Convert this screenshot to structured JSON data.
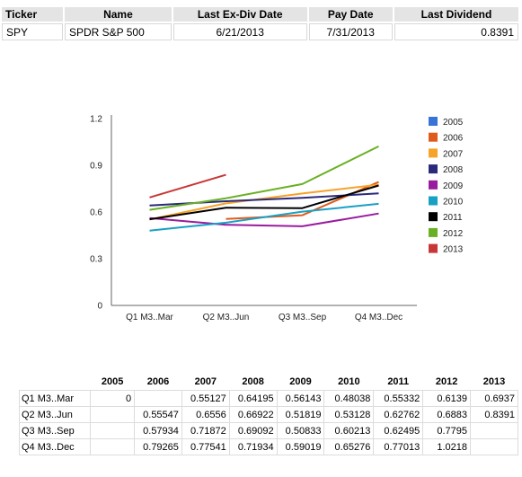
{
  "summary": {
    "headers": [
      "Ticker",
      "Name",
      "Last Ex-Div Date",
      "Pay Date",
      "Last Dividend"
    ],
    "row": {
      "ticker": "SPY",
      "name": "SPDR S&P 500",
      "ex_div_date": "6/21/2013",
      "pay_date": "7/31/2013",
      "last_dividend": "0.8391"
    }
  },
  "chart_data": {
    "type": "line",
    "categories": [
      "Q1 M3..Mar",
      "Q2 M3..Jun",
      "Q3 M3..Sep",
      "Q4 M3..Dec"
    ],
    "ylim": [
      0,
      1.2
    ],
    "yticks": [
      "0",
      "0.3",
      "0.6",
      "0.9",
      "1.2"
    ],
    "grid": false,
    "legend_position": "right",
    "series": [
      {
        "name": "2005",
        "color": "#3873d8",
        "values": [
          null,
          null,
          null,
          null
        ]
      },
      {
        "name": "2006",
        "color": "#e05a1c",
        "values": [
          null,
          0.55547,
          0.57934,
          0.79265
        ]
      },
      {
        "name": "2007",
        "color": "#f7a228",
        "values": [
          0.55127,
          0.6556,
          0.71872,
          0.77541
        ]
      },
      {
        "name": "2008",
        "color": "#2a2a7a",
        "values": [
          0.64195,
          0.66922,
          0.69092,
          0.71934
        ]
      },
      {
        "name": "2009",
        "color": "#9a1c9e",
        "values": [
          0.56143,
          0.51819,
          0.50833,
          0.59019
        ]
      },
      {
        "name": "2010",
        "color": "#1aa0c4",
        "values": [
          0.48038,
          0.53128,
          0.60213,
          0.65276
        ]
      },
      {
        "name": "2011",
        "color": "#000000",
        "values": [
          0.55332,
          0.62762,
          0.62495,
          0.77013
        ]
      },
      {
        "name": "2012",
        "color": "#6ab024",
        "values": [
          0.6139,
          0.6883,
          0.7795,
          1.0218
        ]
      },
      {
        "name": "2013",
        "color": "#c83737",
        "values": [
          0.6937,
          0.8391,
          null,
          null
        ]
      }
    ]
  },
  "table": {
    "columns": [
      "2005",
      "2006",
      "2007",
      "2008",
      "2009",
      "2010",
      "2011",
      "2012",
      "2013"
    ],
    "rows": [
      {
        "label": "Q1 M3..Mar",
        "cells": [
          "0",
          "",
          "0.55127",
          "0.64195",
          "0.56143",
          "0.48038",
          "0.55332",
          "0.6139",
          "0.6937"
        ]
      },
      {
        "label": "Q2 M3..Jun",
        "cells": [
          "",
          "0.55547",
          "0.6556",
          "0.66922",
          "0.51819",
          "0.53128",
          "0.62762",
          "0.6883",
          "0.8391"
        ]
      },
      {
        "label": "Q3 M3..Sep",
        "cells": [
          "",
          "0.57934",
          "0.71872",
          "0.69092",
          "0.50833",
          "0.60213",
          "0.62495",
          "0.7795",
          ""
        ]
      },
      {
        "label": "Q4 M3..Dec",
        "cells": [
          "",
          "0.79265",
          "0.77541",
          "0.71934",
          "0.59019",
          "0.65276",
          "0.77013",
          "1.0218",
          ""
        ]
      }
    ]
  }
}
